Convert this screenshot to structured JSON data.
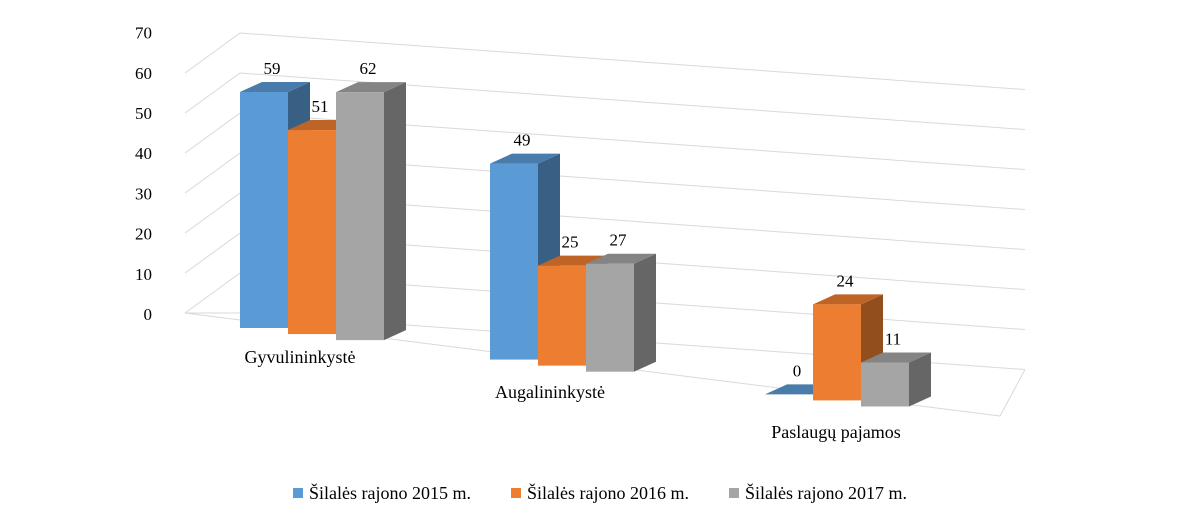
{
  "chart_data": {
    "type": "bar",
    "style": "3d-clustered-column",
    "categories": [
      "Gyvulininkystė",
      "Augalininkystė",
      "Paslaugų pajamos"
    ],
    "series": [
      {
        "name": "Šilalės rajono 2015 m.",
        "values": [
          59,
          49,
          0
        ],
        "color": "#5b9bd5"
      },
      {
        "name": "Šilalės rajono 2016 m.",
        "values": [
          51,
          25,
          24
        ],
        "color": "#ed7d31"
      },
      {
        "name": "Šilalės rajono 2017 m.",
        "values": [
          62,
          27,
          11
        ],
        "color": "#a5a5a5"
      }
    ],
    "yticks": [
      0,
      10,
      20,
      30,
      40,
      50,
      60,
      70
    ],
    "ylim": [
      0,
      70
    ],
    "grid": true,
    "data_labels": true,
    "legend_position": "bottom",
    "title": "",
    "xlabel": "",
    "ylabel": ""
  }
}
